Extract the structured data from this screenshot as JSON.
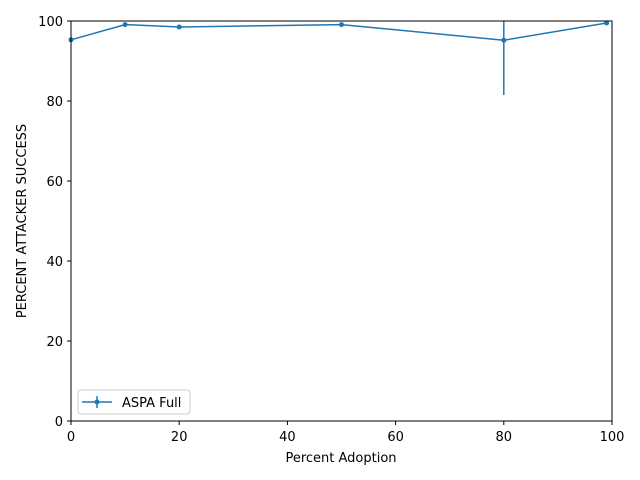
{
  "chart_data": {
    "type": "line",
    "xlabel": "Percent Adoption",
    "ylabel": "PERCENT ATTACKER SUCCESS",
    "xlim": [
      0,
      100
    ],
    "ylim": [
      0,
      100
    ],
    "x_ticks": [
      0,
      20,
      40,
      60,
      80,
      100
    ],
    "y_ticks": [
      0,
      20,
      40,
      60,
      80,
      100
    ],
    "grid": false,
    "legend_position": "lower-left",
    "series": [
      {
        "name": "ASPA Full",
        "color": "#1f77b4",
        "marker": "point",
        "x": [
          0,
          10,
          20,
          50,
          80,
          99
        ],
        "y": [
          95.3,
          99.1,
          98.5,
          99.1,
          95.2,
          99.5
        ],
        "error": [
          [
            0,
            0
          ],
          [
            0,
            0
          ],
          [
            0,
            0
          ],
          [
            0,
            0
          ],
          [
            13.7,
            4.8
          ],
          [
            0,
            0
          ]
        ]
      }
    ]
  }
}
